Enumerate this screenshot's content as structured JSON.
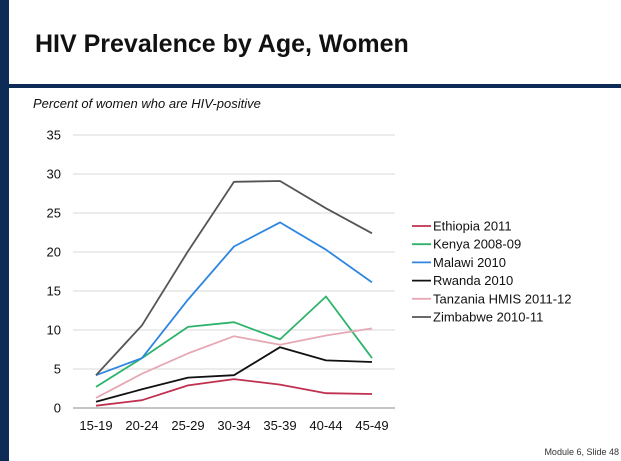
{
  "slide": {
    "title": "HIV Prevalence by Age, Women",
    "footer": "Module 6, Slide 48"
  },
  "colors": {
    "navy": "#0e2b57"
  },
  "chart_data": {
    "type": "line",
    "title": "",
    "subtitle": "Percent of women who are HIV-positive",
    "xlabel": "",
    "ylabel": "",
    "categories": [
      "15-19",
      "20-24",
      "25-29",
      "30-34",
      "35-39",
      "40-44",
      "45-49"
    ],
    "ylim": [
      0,
      35
    ],
    "yticks": [
      0,
      5,
      10,
      15,
      20,
      25,
      30,
      35
    ],
    "grid": "horizontal",
    "legend": "right",
    "series": [
      {
        "name": "Ethiopia 2011",
        "color": "#c0304f",
        "values": [
          0.3,
          1.0,
          2.9,
          3.7,
          3.0,
          1.9,
          1.8
        ]
      },
      {
        "name": "Kenya 2008-09",
        "color": "#2db36b",
        "values": [
          2.7,
          6.4,
          10.4,
          11.0,
          8.8,
          14.3,
          6.4
        ]
      },
      {
        "name": "Malawi 2010",
        "color": "#2f86e0",
        "values": [
          4.2,
          6.4,
          13.9,
          20.7,
          23.8,
          20.3,
          16.1
        ]
      },
      {
        "name": "Rwanda 2010",
        "color": "#111111",
        "values": [
          0.8,
          2.4,
          3.9,
          4.2,
          7.8,
          6.1,
          5.9
        ]
      },
      {
        "name": "Tanzania HMIS 2011-12",
        "color": "#e6a9b4",
        "values": [
          1.3,
          4.4,
          7.0,
          9.2,
          8.1,
          9.3,
          10.2
        ]
      },
      {
        "name": "Zimbabwe 2010-11",
        "color": "#555555",
        "values": [
          4.2,
          10.6,
          20.1,
          29.0,
          29.1,
          25.6,
          22.4
        ]
      }
    ]
  }
}
